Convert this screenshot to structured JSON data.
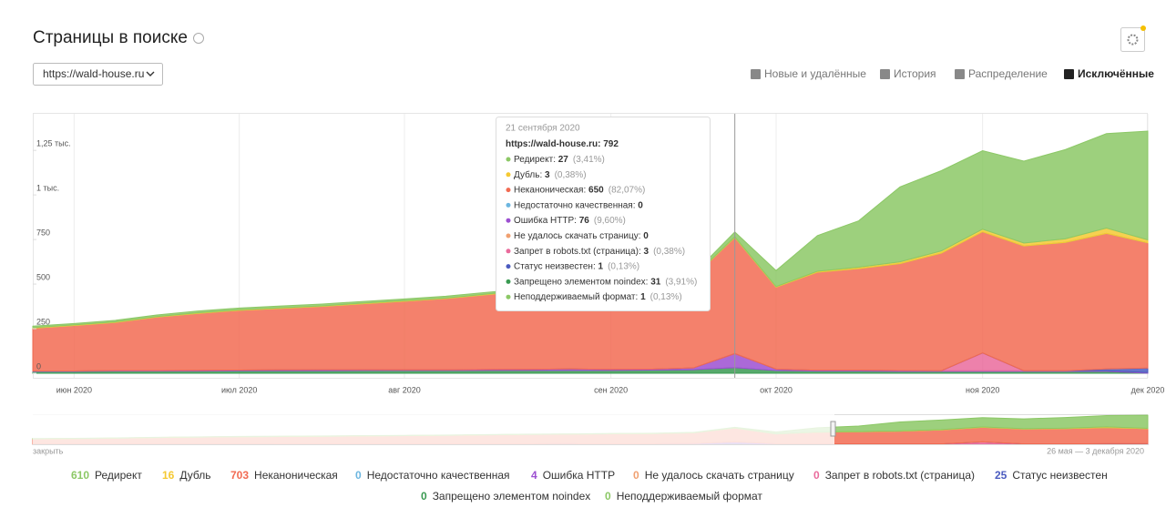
{
  "header": {
    "title": "Страницы в поиске",
    "site_select": "https://wald-house.ru"
  },
  "tabs": [
    "Новые и удалённые",
    "История",
    "Распределение",
    "Исключённые"
  ],
  "chart_data": {
    "type": "area",
    "categories": [
      null,
      "июн 2020",
      null,
      null,
      null,
      "июл 2020",
      null,
      null,
      null,
      "авг 2020",
      null,
      null,
      null,
      null,
      "сен 2020",
      null,
      null,
      null,
      "окт 2020",
      null,
      null,
      null,
      null,
      "ноя 2020",
      null,
      null,
      null,
      "дек 2020"
    ],
    "ylim": [
      0,
      1450
    ],
    "yticks": [
      0,
      250,
      500,
      750,
      {
        "value": 1000,
        "label": "1 тыс."
      },
      {
        "value": 1250,
        "label": "1,25 тыс."
      }
    ],
    "series": [
      {
        "name": "Редирект",
        "color": "#8cc866",
        "total": 610,
        "values": [
          8,
          8,
          9,
          9,
          10,
          10,
          10,
          10,
          10,
          10,
          10,
          10,
          10,
          10,
          10,
          12,
          15,
          27,
          90,
          200,
          260,
          420,
          450,
          440,
          460,
          500,
          530,
          610
        ]
      },
      {
        "name": "Дубль",
        "color": "#f5c932",
        "total": 16,
        "values": [
          3,
          3,
          3,
          3,
          3,
          3,
          3,
          3,
          3,
          3,
          3,
          3,
          3,
          3,
          3,
          3,
          3,
          3,
          3,
          5,
          8,
          10,
          12,
          14,
          16,
          20,
          30,
          16
        ]
      },
      {
        "name": "Неканоническая",
        "color": "#f26b52",
        "total": 703,
        "values": [
          240,
          255,
          270,
          300,
          320,
          335,
          345,
          355,
          370,
          385,
          400,
          420,
          440,
          450,
          470,
          480,
          510,
          650,
          460,
          550,
          570,
          600,
          660,
          680,
          700,
          720,
          760,
          703
        ]
      },
      {
        "name": "Недостаточно качественная",
        "color": "#6cb6e0",
        "total": 0,
        "values": [
          0,
          0,
          0,
          0,
          0,
          0,
          0,
          0,
          0,
          0,
          0,
          0,
          0,
          0,
          0,
          0,
          0,
          0,
          0,
          0,
          0,
          0,
          0,
          0,
          0,
          0,
          0,
          0
        ]
      },
      {
        "name": "Ошибка HTTP",
        "color": "#9c4fd1",
        "total": 4,
        "values": [
          3,
          3,
          3,
          3,
          4,
          4,
          5,
          6,
          5,
          4,
          4,
          5,
          6,
          8,
          6,
          5,
          10,
          76,
          8,
          5,
          5,
          5,
          4,
          4,
          4,
          4,
          4,
          4
        ]
      },
      {
        "name": "Не удалось скачать страницу",
        "color": "#f0a070",
        "total": 0,
        "values": [
          0,
          0,
          0,
          0,
          0,
          0,
          0,
          0,
          0,
          0,
          0,
          0,
          0,
          0,
          0,
          0,
          0,
          0,
          0,
          0,
          0,
          0,
          0,
          0,
          0,
          0,
          0,
          0
        ]
      },
      {
        "name": "Запрет в robots.txt (страница)",
        "color": "#ea6b9c",
        "total": 0,
        "values": [
          0,
          0,
          0,
          0,
          0,
          0,
          0,
          0,
          0,
          0,
          0,
          0,
          0,
          0,
          0,
          0,
          0,
          3,
          0,
          0,
          0,
          0,
          0,
          100,
          0,
          0,
          0,
          0
        ]
      },
      {
        "name": "Статус неизвестен",
        "color": "#4b5bbf",
        "total": 25,
        "values": [
          0,
          0,
          0,
          0,
          0,
          0,
          0,
          0,
          0,
          0,
          0,
          0,
          0,
          0,
          0,
          0,
          0,
          1,
          0,
          0,
          0,
          0,
          0,
          0,
          0,
          0,
          10,
          25
        ]
      },
      {
        "name": "Запрещено элементом noindex",
        "color": "#3a9a52",
        "total": 0,
        "values": [
          10,
          10,
          12,
          12,
          12,
          14,
          14,
          14,
          15,
          15,
          15,
          16,
          16,
          16,
          16,
          18,
          20,
          31,
          15,
          12,
          12,
          10,
          10,
          10,
          10,
          10,
          10,
          0
        ]
      },
      {
        "name": "Неподдерживаемый формат",
        "color": "#8cc866",
        "total": 0,
        "values": [
          0,
          0,
          0,
          0,
          0,
          0,
          0,
          0,
          0,
          0,
          0,
          0,
          0,
          0,
          0,
          0,
          0,
          1,
          0,
          0,
          0,
          0,
          0,
          0,
          0,
          0,
          0,
          0
        ]
      }
    ]
  },
  "tooltip": {
    "date": "21 сентября 2020",
    "site": "https://wald-house.ru",
    "total": 792,
    "rows": [
      {
        "value": 27,
        "share": "(3,41%)"
      },
      {
        "value": 3,
        "share": "(0,38%)"
      },
      {
        "value": 650,
        "share": "(82,07%)"
      },
      {
        "value": 0
      },
      {
        "value": 76,
        "share": "(9,60%)"
      },
      {
        "value": 0
      },
      {
        "value": 3,
        "share": "(0,38%)"
      },
      {
        "value": 1,
        "share": "(0,13%)"
      },
      {
        "value": 31,
        "share": "(3,91%)"
      },
      {
        "value": 1,
        "share": "(0,13%)"
      }
    ]
  },
  "navigator": {
    "close": "закрыть",
    "range": "26 мая — 3 декабря 2020"
  }
}
